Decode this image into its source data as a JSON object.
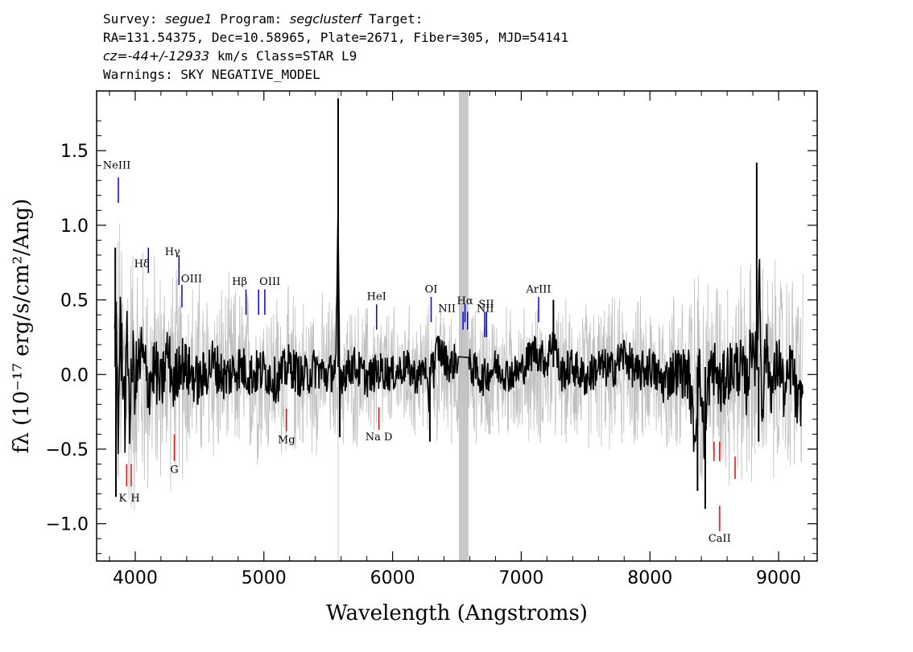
{
  "header": {
    "survey_label": "Survey:",
    "survey": "segue1",
    "program_label": "Program:",
    "program": "segclusterf",
    "target_label": "Target:",
    "line2": "RA=131.54375, Dec=10.58965, Plate=2671, Fiber=305, MJD=54141",
    "cz_label": "cz=",
    "cz_value": "-44+/-12933",
    "cz_unit": "km/s Class=STAR L9",
    "warnings": "Warnings: SKY NEGATIVE_MODEL"
  },
  "chart_data": {
    "type": "line",
    "xlabel": "Wavelength (Angstroms)",
    "ylabel": "fλ (10⁻¹⁷ erg/s/cm²/Ang)",
    "xlim": [
      3700,
      9300
    ],
    "ylim": [
      -1.25,
      1.9
    ],
    "xticks": [
      4000,
      5000,
      6000,
      7000,
      8000,
      9000
    ],
    "yticks": [
      -1.0,
      -0.5,
      0.0,
      0.5,
      1.0,
      1.5
    ],
    "masked_band": [
      6515,
      6590
    ],
    "sky_lines": [
      5577,
      9300
    ],
    "series": [
      {
        "role": "flux",
        "color": "#000000",
        "x": [
          3840,
          3850,
          3870,
          3880,
          3900,
          3920,
          3940,
          3960,
          3980,
          4000,
          4050,
          4100,
          4150,
          4200,
          4250,
          4300,
          4350,
          4400,
          4500,
          4600,
          4700,
          4800,
          4900,
          5000,
          5100,
          5200,
          5300,
          5400,
          5500,
          5560,
          5577,
          5590,
          5600,
          5700,
          5800,
          5900,
          6000,
          6100,
          6200,
          6250,
          6280,
          6300,
          6320,
          6350,
          6400,
          6450,
          6500,
          6510,
          6600,
          6700,
          6800,
          6900,
          7000,
          7100,
          7200,
          7250,
          7300,
          7400,
          7500,
          7600,
          7700,
          7800,
          7900,
          8000,
          8100,
          8200,
          8300,
          8350,
          8380,
          8400,
          8430,
          8450,
          8500,
          8550,
          8600,
          8700,
          8750,
          8800,
          8830,
          8850,
          8870,
          8900,
          8950,
          9000,
          9050,
          9100,
          9150,
          9190
        ],
        "y": [
          0.2,
          0.85,
          -0.8,
          0.5,
          0.3,
          -0.5,
          0.45,
          -0.6,
          0.2,
          -0.1,
          0.25,
          -0.15,
          0.1,
          -0.2,
          0.3,
          -0.15,
          0.2,
          0.05,
          -0.1,
          0.15,
          -0.05,
          0.1,
          0.0,
          0.05,
          -0.08,
          0.12,
          -0.05,
          0.08,
          -0.02,
          0.1,
          1.85,
          -0.4,
          0.0,
          0.12,
          -0.05,
          0.05,
          0.0,
          0.1,
          -0.05,
          0.15,
          -0.45,
          0.3,
          0.05,
          0.35,
          0.2,
          0.1,
          0.2,
          0.15,
          0.1,
          -0.05,
          0.1,
          0.0,
          0.05,
          0.3,
          0.15,
          0.5,
          0.0,
          0.1,
          -0.05,
          0.1,
          0.05,
          0.25,
          0.0,
          0.1,
          -0.1,
          0.05,
          0.0,
          -0.8,
          0.15,
          -0.3,
          -0.9,
          -0.1,
          0.1,
          -0.2,
          0.05,
          0.1,
          -0.15,
          0.5,
          0.0,
          1.42,
          -0.45,
          0.35,
          -0.2,
          0.2,
          -0.3,
          0.15,
          -0.45,
          -0.15
        ]
      },
      {
        "role": "noise",
        "color": "#c0c0c0",
        "x": [
          3850,
          4000,
          4200,
          4500,
          5000,
          5500,
          6000,
          6500,
          7000,
          7500,
          8000,
          8400,
          8800,
          9200
        ],
        "y": [
          0.9,
          0.75,
          0.6,
          0.5,
          0.45,
          0.4,
          0.35,
          0.35,
          0.35,
          0.38,
          0.4,
          0.55,
          0.6,
          0.55
        ]
      }
    ],
    "emission_lines": [
      {
        "name": "NeIII",
        "wave": 3869,
        "y": [
          1.15,
          1.32
        ],
        "label_y": 1.38,
        "label_dx": -2
      },
      {
        "name": "Hδ",
        "wave": 4102,
        "y": [
          0.68,
          0.85
        ],
        "label_y": 0.72,
        "label_dx": -8
      },
      {
        "name": "Hγ",
        "wave": 4340,
        "y": [
          0.6,
          0.8
        ],
        "label_y": 0.8,
        "label_dx": -8
      },
      {
        "name": "OIII",
        "wave": 4363,
        "y": [
          0.45,
          0.6
        ],
        "label_y": 0.62,
        "label_dx": 12
      },
      {
        "name": "Hβ",
        "wave": 4861,
        "y": [
          0.4,
          0.57
        ],
        "label_y": 0.6,
        "label_dx": -8
      },
      {
        "name": "OIII",
        "wave": 4959,
        "y": [
          0.4,
          0.57
        ],
        "label_y": 0.6,
        "label_dx": 14
      },
      {
        "name": "OIII",
        "wave": 5007,
        "y": [
          0.4,
          0.57
        ],
        "label_y": 0.6,
        "label_dx": 0,
        "hide_label": true
      },
      {
        "name": "HeI",
        "wave": 5876,
        "y": [
          0.3,
          0.47
        ],
        "label_y": 0.5,
        "label_dx": 0
      },
      {
        "name": "OI",
        "wave": 6300,
        "y": [
          0.35,
          0.52
        ],
        "label_y": 0.55,
        "label_dx": 0
      },
      {
        "name": "NII",
        "wave": 6548,
        "y": [
          0.3,
          0.42
        ],
        "label_y": 0.42,
        "label_dx": -20
      },
      {
        "name": "Hα",
        "wave": 6563,
        "y": [
          0.35,
          0.47
        ],
        "label_y": 0.47,
        "label_dx": 0
      },
      {
        "name": "NII",
        "wave": 6583,
        "y": [
          0.3,
          0.42
        ],
        "label_y": 0.42,
        "label_dx": 22
      },
      {
        "name": "SII",
        "wave": 6716,
        "y": [
          0.25,
          0.42
        ],
        "label_y": 0.45,
        "label_dx": 2
      },
      {
        "name": "SII",
        "wave": 6730,
        "y": [
          0.25,
          0.42
        ],
        "label_y": 0.45,
        "label_dx": 0,
        "hide_label": true
      },
      {
        "name": "ArIII",
        "wave": 7135,
        "y": [
          0.35,
          0.52
        ],
        "label_y": 0.55,
        "label_dx": 0
      }
    ],
    "absorption_lines": [
      {
        "name": "K",
        "wave": 3934,
        "y": [
          -0.6,
          -0.75
        ],
        "label_y": -0.85,
        "label_dx": -5
      },
      {
        "name": "H",
        "wave": 3969,
        "y": [
          -0.6,
          -0.75
        ],
        "label_y": -0.85,
        "label_dx": 5
      },
      {
        "name": "G",
        "wave": 4304,
        "y": [
          -0.4,
          -0.58
        ],
        "label_y": -0.66,
        "label_dx": 0
      },
      {
        "name": "Mg",
        "wave": 5175,
        "y": [
          -0.23,
          -0.38
        ],
        "label_y": -0.46,
        "label_dx": 0
      },
      {
        "name": "Na D",
        "wave": 5894,
        "y": [
          -0.22,
          -0.37
        ],
        "label_y": -0.44,
        "label_dx": 0
      },
      {
        "name": "CaII",
        "wave": 8498,
        "y": [
          -0.45,
          -0.58
        ],
        "label_y": -1.1,
        "label_dx": 0,
        "hide_label": true
      },
      {
        "name": "CaII",
        "wave": 8542,
        "y": [
          -0.45,
          -0.58
        ],
        "label_y": -1.1,
        "label_dx": 0,
        "hide_label": true
      },
      {
        "name": "CaII",
        "wave": 8662,
        "y": [
          -0.55,
          -0.7
        ],
        "label_y": -1.1,
        "label_dx": 0,
        "hide_label": true
      },
      {
        "name": "CaII",
        "wave": 8542,
        "y": [
          -0.88,
          -1.05
        ],
        "label_y": -1.12,
        "label_dx": 0
      }
    ],
    "emission_color": "#0000ff",
    "absorption_color": "#ff0000",
    "mask_color": "#c8c8c8"
  }
}
